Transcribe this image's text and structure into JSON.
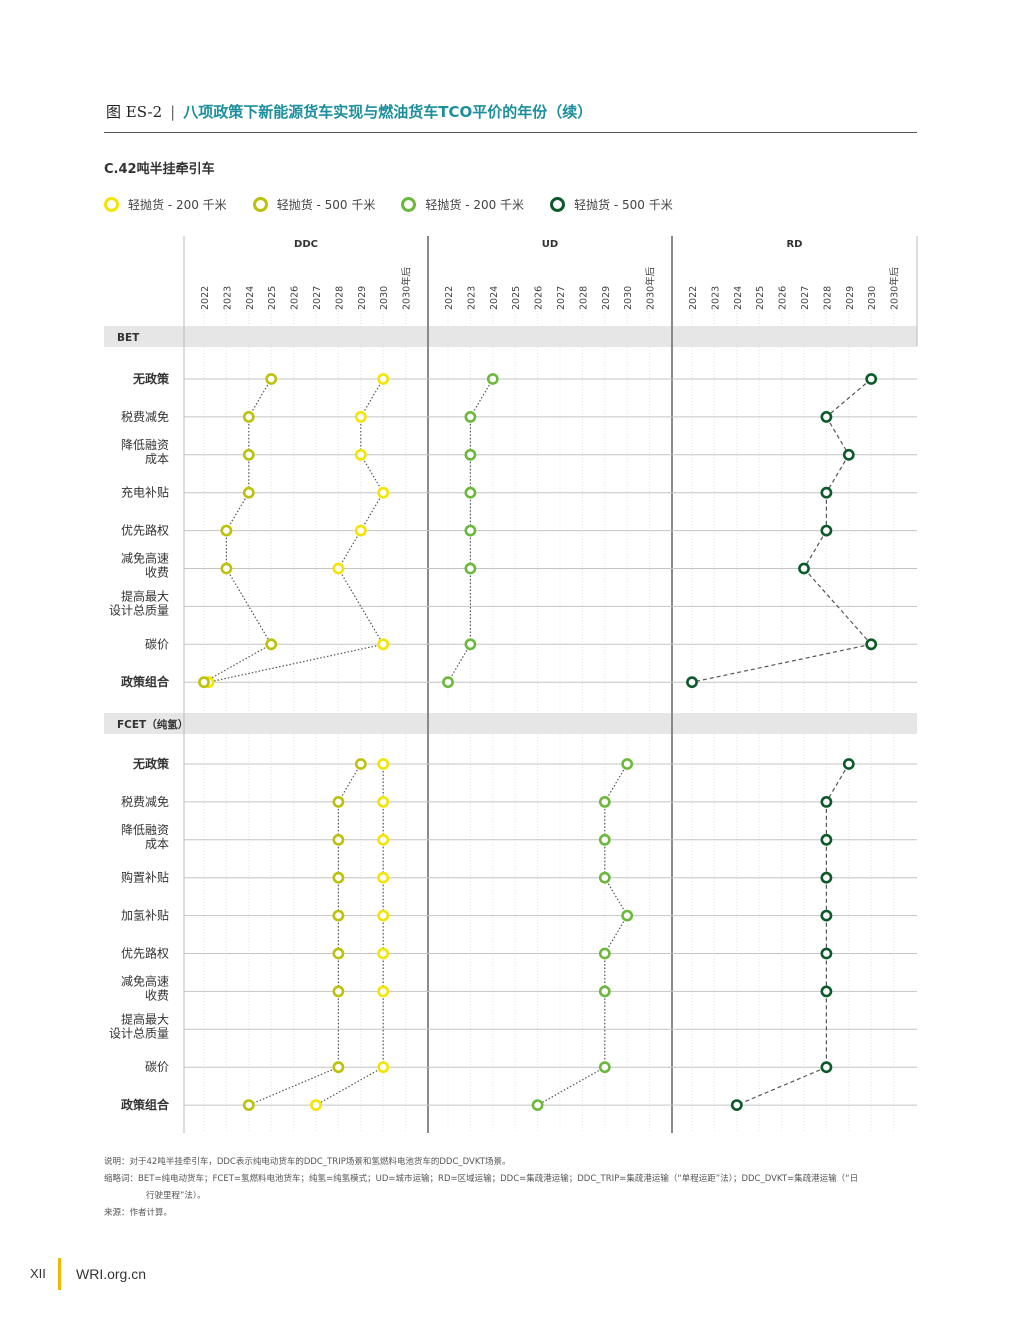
{
  "figure": {
    "number": "图 ES-2",
    "separator": "|",
    "title": "八项政策下新能源货车实现与燃油货车TCO平价的年份（续）",
    "subtitle": "C.42吨半挂牵引车"
  },
  "legend": [
    {
      "label": "轻抛货 - 200 千米",
      "color": "#f5e400"
    },
    {
      "label": "轻抛货 - 500 千米",
      "color": "#bcc10a"
    },
    {
      "label": "轻抛货 - 200 千米",
      "color": "#6cb83d"
    },
    {
      "label": "轻抛货 - 500 千米",
      "color": "#0c5a2a"
    }
  ],
  "chart_data": {
    "type": "scatter",
    "panels": [
      "DDC",
      "UD",
      "RD"
    ],
    "years": [
      "2022",
      "2023",
      "2024",
      "2025",
      "2026",
      "2027",
      "2028",
      "2029",
      "2030",
      "2030年后"
    ],
    "sections": [
      {
        "name": "BET",
        "policies": [
          "无政策",
          "税费减免",
          "降低融资成本",
          "充电补贴",
          "优先路权",
          "减免高速收费",
          "提高最大设计总质量",
          "碳价",
          "政策组合"
        ],
        "policy_lines": [
          [
            "无政策"
          ],
          [
            "税费减免"
          ],
          [
            "降低融资",
            "成本"
          ],
          [
            "充电补贴"
          ],
          [
            "优先路权"
          ],
          [
            "减免高速",
            "收费"
          ],
          [
            "提高最大",
            "设计总质量"
          ],
          [
            "碳价"
          ],
          [
            "政策组合"
          ]
        ],
        "bold": [
          true,
          false,
          false,
          false,
          false,
          false,
          false,
          false,
          true
        ],
        "series": [
          {
            "panel": "DDC",
            "legend_index": 0,
            "values": [
              2030.5,
              2029,
              2029,
              2030,
              2029,
              2028,
              null,
              2030.5,
              2022.2
            ]
          },
          {
            "panel": "DDC",
            "legend_index": 1,
            "values": [
              2025,
              2024,
              2024,
              2024,
              2023,
              2023,
              null,
              2025,
              2022
            ]
          },
          {
            "panel": "UD",
            "legend_index": 2,
            "values": [
              2024,
              2023,
              2023,
              2023,
              2023,
              2023,
              null,
              2023,
              2022
            ]
          },
          {
            "panel": "RD",
            "legend_index": 3,
            "values": [
              2030.5,
              2028,
              2029,
              2028,
              2028,
              2027,
              null,
              2030,
              2022
            ]
          }
        ]
      },
      {
        "name": "FCET（纯氢）",
        "policies": [
          "无政策",
          "税费减免",
          "降低融资成本",
          "购置补贴",
          "加氢补贴",
          "优先路权",
          "减免高速收费",
          "提高最大设计总质量",
          "碳价",
          "政策组合"
        ],
        "policy_lines": [
          [
            "无政策"
          ],
          [
            "税费减免"
          ],
          [
            "降低融资",
            "成本"
          ],
          [
            "购置补贴"
          ],
          [
            "加氢补贴"
          ],
          [
            "优先路权"
          ],
          [
            "减免高速",
            "收费"
          ],
          [
            "提高最大",
            "设计总质量"
          ],
          [
            "碳价"
          ],
          [
            "政策组合"
          ]
        ],
        "bold": [
          true,
          false,
          false,
          false,
          false,
          false,
          false,
          false,
          false,
          true
        ],
        "series": [
          {
            "panel": "DDC",
            "legend_index": 0,
            "values": [
              2030.5,
              2030.5,
              2030.5,
              2030,
              2030.5,
              2030.5,
              2030.5,
              null,
              2030.5,
              2027
            ]
          },
          {
            "panel": "DDC",
            "legend_index": 1,
            "values": [
              2029,
              2028,
              2028,
              2028,
              2028,
              2028,
              2028,
              null,
              2028,
              2024
            ]
          },
          {
            "panel": "UD",
            "legend_index": 2,
            "values": [
              2030,
              2029,
              2029,
              2029,
              2030,
              2029,
              2029,
              null,
              2029,
              2026
            ]
          },
          {
            "panel": "RD",
            "legend_index": 3,
            "values": [
              2029,
              2028,
              2028,
              2028,
              2028,
              2028,
              2028,
              null,
              2028,
              2024
            ]
          }
        ]
      }
    ]
  },
  "notes": [
    "说明：对于42吨半挂牵引车，DDC表示纯电动货车的DDC_TRIP场景和氢燃料电池货车的DDC_DVKT场景。",
    "缩略词：BET=纯电动货车；FCET=氢燃料电池货车；纯氢=纯氢模式；UD=城市运输；RD=区域运输；DDC=集疏港运输；DDC_TRIP=集疏港运输（“单程运距”法）；DDC_DVKT=集疏港运输（“日",
    "行驶里程”法）。",
    "来源：作者计算。"
  ],
  "footer": {
    "page": "XII",
    "site": "WRI.org.cn"
  }
}
